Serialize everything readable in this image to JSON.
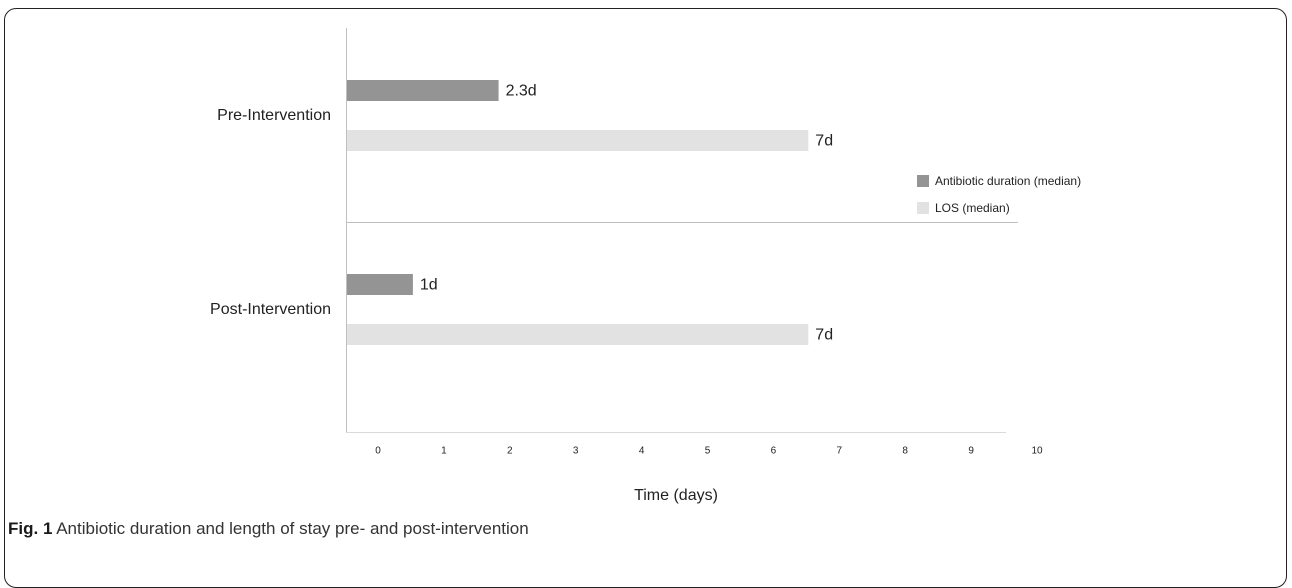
{
  "chart_data": {
    "type": "bar",
    "orientation": "horizontal",
    "categories": [
      "Pre-Intervention",
      "Post-Intervention"
    ],
    "series": [
      {
        "name": "Antibiotic duration (median)",
        "color": "#949494",
        "values": [
          2.3,
          1
        ],
        "labels": [
          "2.3d",
          "1d"
        ]
      },
      {
        "name": "LOS (median)",
        "color": "#e2e2e2",
        "values": [
          7,
          7
        ],
        "labels": [
          "7d",
          "7d"
        ]
      }
    ],
    "xticks": [
      0,
      1,
      2,
      3,
      4,
      5,
      6,
      7,
      8,
      9,
      10
    ],
    "xlim": [
      0,
      10
    ],
    "xlabel": "Time (days)",
    "legend_position": "right"
  },
  "caption": {
    "label": "Fig. 1",
    "text": "Antibiotic duration and length of stay pre- and post-intervention"
  }
}
